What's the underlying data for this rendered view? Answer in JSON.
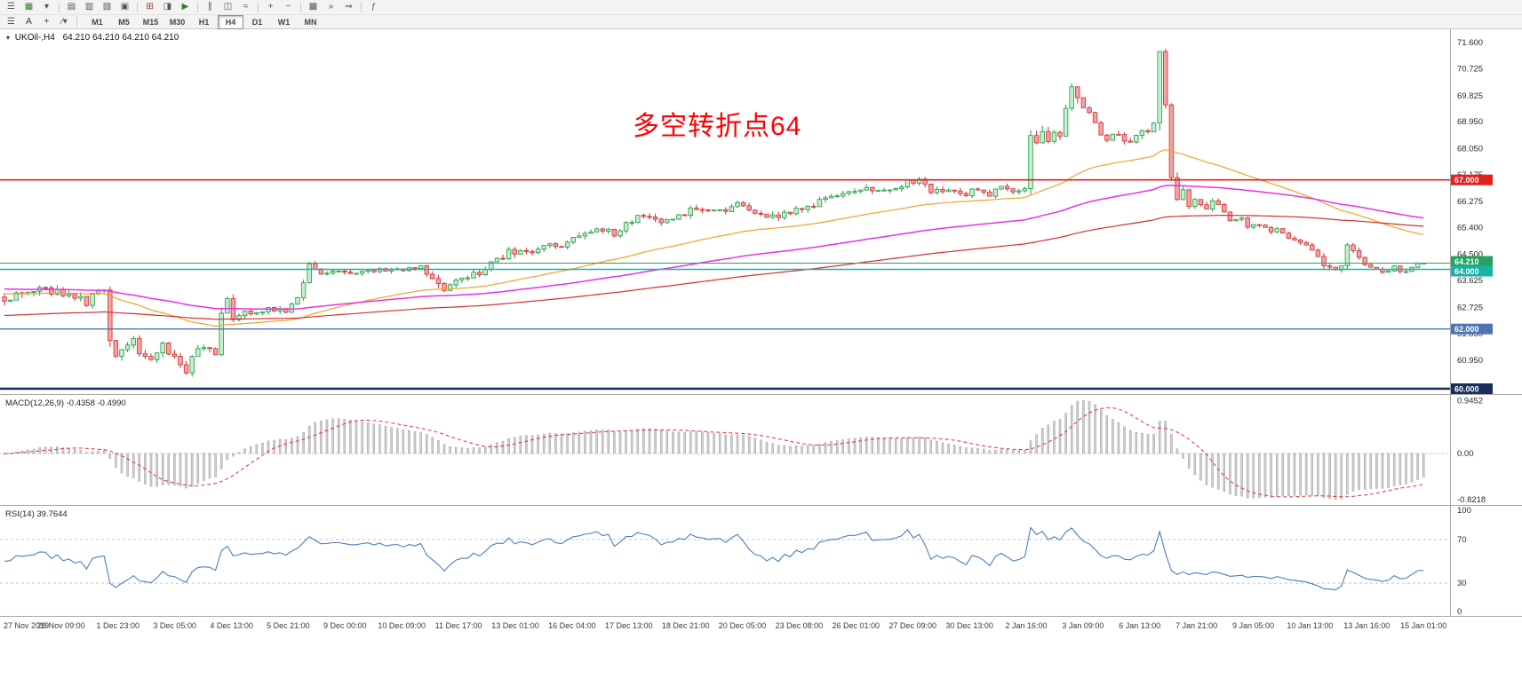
{
  "toolbar": {
    "row1_icons": [
      {
        "name": "charts-menu-icon",
        "glyph": "☰",
        "color": "#555555"
      },
      {
        "name": "new-chart-icon",
        "glyph": "▦",
        "color": "#2e7d32"
      },
      {
        "name": "chart-profiles-dropdown-icon",
        "glyph": "▾",
        "color": "#555555"
      },
      {
        "name": "sep-1",
        "sep": true
      },
      {
        "name": "market-watch-icon",
        "glyph": "▤",
        "color": "#555555"
      },
      {
        "name": "data-window-icon",
        "glyph": "▥",
        "color": "#555555"
      },
      {
        "name": "navigator-icon",
        "glyph": "▧",
        "color": "#555555"
      },
      {
        "name": "terminal-icon",
        "glyph": "▣",
        "color": "#555555"
      },
      {
        "name": "sep-2",
        "sep": true
      },
      {
        "name": "new-order-icon",
        "glyph": "⊞",
        "color": "#b03030"
      },
      {
        "name": "metaeditor-icon",
        "glyph": "◨",
        "color": "#555555"
      },
      {
        "name": "autotrading-icon",
        "glyph": "▶",
        "color": "#2e7d32"
      },
      {
        "name": "sep-3",
        "sep": true
      },
      {
        "name": "bar-chart-icon",
        "glyph": "∥",
        "color": "#555555"
      },
      {
        "name": "candlestick-chart-icon",
        "glyph": "◫",
        "color": "#555555"
      },
      {
        "name": "line-chart-icon",
        "glyph": "≈",
        "color": "#555555"
      },
      {
        "name": "sep-4",
        "sep": true
      },
      {
        "name": "zoom-in-icon",
        "glyph": "+",
        "color": "#555555"
      },
      {
        "name": "zoom-out-icon",
        "glyph": "−",
        "color": "#555555"
      },
      {
        "name": "sep-5",
        "sep": true
      },
      {
        "name": "tile-windows-icon",
        "glyph": "▩",
        "color": "#555555"
      },
      {
        "name": "auto-scroll-icon",
        "glyph": "»",
        "color": "#555555"
      },
      {
        "name": "chart-shift-icon",
        "glyph": "⇒",
        "color": "#555555"
      },
      {
        "name": "sep-6",
        "sep": true
      },
      {
        "name": "indicators-icon",
        "glyph": "ƒ",
        "color": "#2e7d32"
      }
    ],
    "tools": [
      {
        "name": "chart-list-icon",
        "glyph": "☰",
        "color": "#555555"
      },
      {
        "name": "text-tool-icon",
        "glyph": "A",
        "color": "#333333"
      },
      {
        "name": "crosshair-tool-icon",
        "glyph": "+",
        "color": "#333333"
      },
      {
        "name": "draw-tools-dropdown-icon",
        "glyph": "∕▾",
        "color": "#555555"
      },
      {
        "name": "sep-t1",
        "sep": true
      }
    ],
    "timeframes": {
      "items": [
        "M1",
        "M5",
        "M15",
        "M30",
        "H1",
        "H4",
        "D1",
        "W1",
        "MN"
      ],
      "active": "H4"
    }
  },
  "chart": {
    "symbol_tf": "UKOil-,H4",
    "ohlc": "64.210 64.210 64.210 64.210",
    "collapse_glyph": "▾",
    "annotation": {
      "text": "多空转折点64",
      "color": "#ff0000"
    },
    "price_axis_ticks": [
      "71.600",
      "70.725",
      "69.825",
      "68.950",
      "68.050",
      "67.175",
      "66.275",
      "65.400",
      "64.500",
      "63.625",
      "62.725",
      "61.850",
      "60.950",
      "60.075"
    ],
    "hlines": [
      {
        "value": 67.0,
        "label": "67.000",
        "color": "#e22020",
        "width": 1.6,
        "tag_dy": 0
      },
      {
        "value": 64.21,
        "label": "64.210",
        "color": "#27a063",
        "width": 1.0,
        "tag_dy": -2
      },
      {
        "value": 64.0,
        "label": "64.000",
        "color": "#18b2a8",
        "width": 1.6,
        "tag_dy": 2
      },
      {
        "value": 62.0,
        "label": "62.000",
        "color": "#4f74b3",
        "width": 1.4,
        "tag_dy": 0
      },
      {
        "value": 60.0,
        "label": "60.000",
        "color": "#17305e",
        "width": 2.5,
        "tag_dy": 0
      }
    ],
    "time_axis": [
      "27 Nov 2019",
      "28 Nov 09:00",
      "1 Dec 23:00",
      "3 Dec 05:00",
      "4 Dec 13:00",
      "5 Dec 21:00",
      "9 Dec 00:00",
      "10 Dec 09:00",
      "11 Dec 17:00",
      "13 Dec 01:00",
      "16 Dec 04:00",
      "17 Dec 13:00",
      "18 Dec 21:00",
      "20 Dec 05:00",
      "23 Dec 08:00",
      "26 Dec 01:00",
      "27 Dec 09:00",
      "30 Dec 13:00",
      "2 Jan 16:00",
      "3 Jan 09:00",
      "6 Jan 13:00",
      "7 Jan 21:00",
      "9 Jan 05:00",
      "10 Jan 13:00",
      "13 Jan 16:00",
      "15 Jan 01:00"
    ]
  },
  "macd_panel": {
    "label": "MACD(12,26,9) -0.4358 -0.4990",
    "axis_labels": [
      "0.9452",
      "0.00",
      "-0.8218"
    ],
    "axis_values": [
      0.9452,
      0,
      -0.8218
    ]
  },
  "rsi_panel": {
    "label": "RSI(14) 39.7644",
    "axis_labels": [
      "100",
      "70",
      "30",
      "0"
    ],
    "axis_values": [
      100,
      70,
      30,
      0
    ],
    "levels": [
      70,
      30
    ]
  },
  "chart_data": {
    "type": "candlestick",
    "symbol": "UKOil-",
    "timeframe": "H4",
    "bars": 243,
    "y_range": [
      59.82,
      72.05
    ],
    "current_price": 64.21,
    "price_anchors": [
      [
        0,
        63.05,
        0.3
      ],
      [
        6,
        63.3,
        0.28
      ],
      [
        10,
        63.2,
        0.3
      ],
      [
        14,
        62.9,
        0.3
      ],
      [
        16,
        63.35,
        0.25
      ],
      [
        17,
        63.3,
        0.2
      ],
      [
        18,
        61.7,
        0.5
      ],
      [
        19,
        61.1,
        0.35
      ],
      [
        22,
        61.55,
        0.3
      ],
      [
        24,
        60.95,
        0.3
      ],
      [
        27,
        61.4,
        0.3
      ],
      [
        29,
        61.05,
        0.3
      ],
      [
        31,
        60.6,
        0.3
      ],
      [
        33,
        61.3,
        0.3
      ],
      [
        36,
        61.2,
        0.28
      ],
      [
        37,
        62.6,
        0.45
      ],
      [
        38,
        62.95,
        0.3
      ],
      [
        39,
        62.35,
        0.3
      ],
      [
        41,
        62.6,
        0.22
      ],
      [
        43,
        62.45,
        0.22
      ],
      [
        45,
        62.7,
        0.22
      ],
      [
        48,
        62.6,
        0.22
      ],
      [
        50,
        63.0,
        0.25
      ],
      [
        52,
        64.1,
        0.4
      ],
      [
        53,
        63.9,
        0.25
      ],
      [
        55,
        63.95,
        0.18
      ],
      [
        59,
        63.85,
        0.18
      ],
      [
        62,
        64.0,
        0.18
      ],
      [
        67,
        63.95,
        0.18
      ],
      [
        71,
        64.05,
        0.18
      ],
      [
        74,
        63.5,
        0.3
      ],
      [
        75,
        63.35,
        0.25
      ],
      [
        78,
        63.7,
        0.22
      ],
      [
        81,
        63.85,
        0.22
      ],
      [
        84,
        64.3,
        0.25
      ],
      [
        86,
        64.6,
        0.35
      ],
      [
        89,
        64.5,
        0.25
      ],
      [
        92,
        64.8,
        0.25
      ],
      [
        95,
        64.75,
        0.22
      ],
      [
        98,
        65.1,
        0.25
      ],
      [
        101,
        65.35,
        0.25
      ],
      [
        104,
        65.2,
        0.22
      ],
      [
        106,
        65.55,
        0.25
      ],
      [
        109,
        65.8,
        0.25
      ],
      [
        113,
        65.6,
        0.22
      ],
      [
        116,
        65.9,
        0.25
      ],
      [
        119,
        66.1,
        0.25
      ],
      [
        122,
        65.95,
        0.22
      ],
      [
        125,
        66.15,
        0.22
      ],
      [
        128,
        65.85,
        0.25
      ],
      [
        132,
        65.75,
        0.25
      ],
      [
        135,
        66.0,
        0.22
      ],
      [
        138,
        66.2,
        0.22
      ],
      [
        141,
        66.45,
        0.25
      ],
      [
        144,
        66.55,
        0.22
      ],
      [
        147,
        66.75,
        0.25
      ],
      [
        150,
        66.7,
        0.22
      ],
      [
        154,
        66.9,
        0.22
      ],
      [
        156,
        67.05,
        0.25
      ],
      [
        158,
        66.6,
        0.28
      ],
      [
        161,
        66.75,
        0.22
      ],
      [
        163,
        66.5,
        0.25
      ],
      [
        165,
        66.65,
        0.22
      ],
      [
        168,
        66.55,
        0.22
      ],
      [
        170,
        66.7,
        0.22
      ],
      [
        173,
        66.6,
        0.22
      ],
      [
        174,
        66.8,
        0.25
      ],
      [
        175,
        68.3,
        0.55
      ],
      [
        176,
        68.25,
        0.35
      ],
      [
        177,
        68.55,
        0.4
      ],
      [
        178,
        68.3,
        0.35
      ],
      [
        180,
        68.6,
        0.35
      ],
      [
        181,
        69.3,
        0.45
      ],
      [
        182,
        70.0,
        0.5
      ],
      [
        183,
        69.9,
        0.45
      ],
      [
        184,
        69.4,
        0.4
      ],
      [
        186,
        69.0,
        0.35
      ],
      [
        187,
        68.6,
        0.4
      ],
      [
        188,
        68.4,
        0.35
      ],
      [
        190,
        68.5,
        0.3
      ],
      [
        192,
        68.35,
        0.3
      ],
      [
        194,
        68.6,
        0.3
      ],
      [
        196,
        68.85,
        0.3
      ],
      [
        197,
        71.3,
        0.6
      ],
      [
        198,
        69.3,
        0.55
      ],
      [
        199,
        67.2,
        0.55
      ],
      [
        200,
        66.35,
        0.45
      ],
      [
        201,
        66.55,
        0.3
      ],
      [
        202,
        66.2,
        0.28
      ],
      [
        203,
        66.45,
        0.25
      ],
      [
        205,
        66.05,
        0.25
      ],
      [
        206,
        66.3,
        0.22
      ],
      [
        208,
        65.9,
        0.25
      ],
      [
        209,
        65.6,
        0.25
      ],
      [
        211,
        65.75,
        0.22
      ],
      [
        212,
        65.5,
        0.22
      ],
      [
        214,
        65.55,
        0.2
      ],
      [
        216,
        65.3,
        0.2
      ],
      [
        217,
        65.4,
        0.18
      ],
      [
        219,
        65.1,
        0.2
      ],
      [
        220,
        64.9,
        0.2
      ],
      [
        222,
        64.75,
        0.2
      ],
      [
        223,
        64.6,
        0.2
      ],
      [
        225,
        64.15,
        0.25
      ],
      [
        227,
        64.0,
        0.22
      ],
      [
        228,
        64.2,
        0.22
      ],
      [
        229,
        64.75,
        0.3
      ],
      [
        231,
        64.45,
        0.25
      ],
      [
        232,
        64.2,
        0.22
      ],
      [
        234,
        64.05,
        0.2
      ],
      [
        235,
        63.95,
        0.2
      ],
      [
        237,
        64.1,
        0.18
      ],
      [
        239,
        63.9,
        0.22
      ],
      [
        240,
        64.1,
        0.18
      ],
      [
        242,
        64.21,
        0.15
      ]
    ],
    "moving_averages": [
      {
        "name": "fast-ma",
        "period": 48,
        "color": "#efa228",
        "seed": 63.2,
        "width": 1.2
      },
      {
        "name": "mid-ma",
        "period": 110,
        "color": "#e632e6",
        "seed": 63.35,
        "width": 1.5
      },
      {
        "name": "slow-ma",
        "period": 190,
        "color": "#d23030",
        "seed": 62.45,
        "width": 1.2
      }
    ],
    "candle_colors": {
      "up_fill": "#c6efcf",
      "up_stroke": "#199a44",
      "down_fill": "#f4a2a2",
      "down_stroke": "#d42a2a"
    },
    "macd": {
      "fast": 12,
      "slow": 26,
      "signal": 9,
      "value": -0.4358,
      "signal_value": -0.499,
      "scale_max": 0.9452,
      "scale_min": -0.8218,
      "hist_color": "#cfcfcf",
      "hist_stroke": "#9e9e9e",
      "signal_color": "#e03030"
    },
    "rsi": {
      "period": 14,
      "value": 39.7644,
      "color": "#4a7ebb",
      "levels": [
        70,
        30
      ]
    }
  }
}
